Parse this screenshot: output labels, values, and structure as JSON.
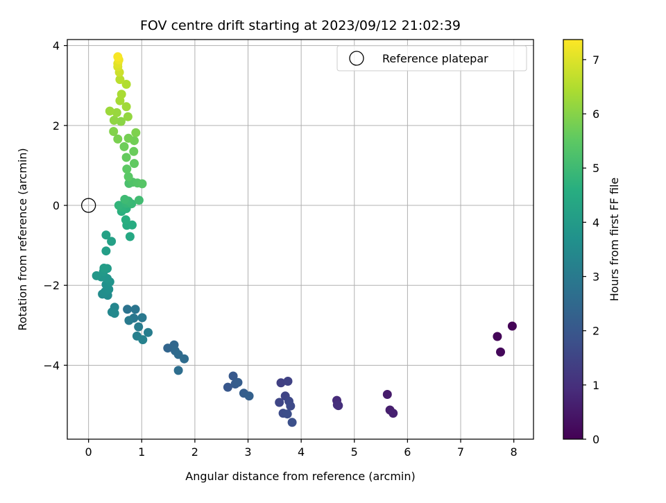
{
  "chart_data": {
    "type": "scatter",
    "title": "FOV centre drift starting at 2023/09/12 21:02:39",
    "xlabel": "Angular distance from reference (arcmin)",
    "ylabel": "Rotation from reference (arcmin)",
    "xlim": [
      -0.4,
      8.37
    ],
    "ylim": [
      -5.85,
      4.15
    ],
    "xticks": [
      "0",
      "1",
      "2",
      "3",
      "4",
      "5",
      "6",
      "7",
      "8"
    ],
    "yticks": [
      "−4",
      "−2",
      "0",
      "2",
      "4"
    ],
    "grid": true,
    "legend": {
      "position": "top-right",
      "entries": [
        "Reference platepar"
      ]
    },
    "reference_point": {
      "x": 0,
      "y": 0,
      "name": "Reference platepar"
    },
    "colorbar": {
      "label": "Hours from first FF file",
      "min": 0,
      "max": 7.37,
      "ticks": [
        "0",
        "1",
        "2",
        "3",
        "4",
        "5",
        "6",
        "7"
      ],
      "colormap": "viridis"
    },
    "points": [
      [
        7.97,
        -3.02,
        0.05
      ],
      [
        7.69,
        -3.28,
        0.1
      ],
      [
        7.75,
        -3.67,
        0.15
      ],
      [
        5.62,
        -4.73,
        0.55
      ],
      [
        5.67,
        -5.12,
        0.6
      ],
      [
        5.73,
        -5.2,
        0.65
      ],
      [
        4.67,
        -4.88,
        0.9
      ],
      [
        4.68,
        -4.99,
        0.95
      ],
      [
        4.7,
        -5.01,
        1.0
      ],
      [
        3.62,
        -4.44,
        1.4
      ],
      [
        3.75,
        -4.4,
        1.45
      ],
      [
        3.7,
        -4.77,
        1.5
      ],
      [
        3.59,
        -4.93,
        1.55
      ],
      [
        3.77,
        -4.9,
        1.6
      ],
      [
        3.8,
        -5.02,
        1.65
      ],
      [
        3.66,
        -5.2,
        1.7
      ],
      [
        3.74,
        -5.22,
        1.75
      ],
      [
        3.83,
        -5.43,
        1.8
      ],
      [
        2.62,
        -4.55,
        2.0
      ],
      [
        2.72,
        -4.27,
        2.05
      ],
      [
        2.76,
        -4.47,
        2.1
      ],
      [
        2.81,
        -4.43,
        2.15
      ],
      [
        2.92,
        -4.7,
        2.2
      ],
      [
        3.02,
        -4.77,
        2.25
      ],
      [
        1.49,
        -3.57,
        2.4
      ],
      [
        1.61,
        -3.49,
        2.45
      ],
      [
        1.63,
        -3.64,
        2.5
      ],
      [
        1.69,
        -3.73,
        2.55
      ],
      [
        1.8,
        -3.84,
        2.6
      ],
      [
        1.69,
        -4.13,
        2.65
      ],
      [
        0.73,
        -2.6,
        2.8
      ],
      [
        0.88,
        -2.6,
        2.85
      ],
      [
        0.85,
        -2.82,
        2.9
      ],
      [
        1.01,
        -2.81,
        2.95
      ],
      [
        0.76,
        -2.88,
        3.0
      ],
      [
        0.94,
        -3.04,
        3.05
      ],
      [
        1.12,
        -3.18,
        3.1
      ],
      [
        0.91,
        -3.27,
        3.15
      ],
      [
        1.02,
        -3.36,
        3.2
      ],
      [
        0.49,
        -2.55,
        3.35
      ],
      [
        0.44,
        -2.67,
        3.4
      ],
      [
        0.49,
        -2.7,
        3.45
      ],
      [
        0.36,
        -2.25,
        3.5
      ],
      [
        0.26,
        -2.22,
        3.55
      ],
      [
        0.31,
        -2.16,
        3.6
      ],
      [
        0.38,
        -2.1,
        3.65
      ],
      [
        0.33,
        -1.98,
        3.7
      ],
      [
        0.4,
        -1.91,
        3.75
      ],
      [
        0.35,
        -1.83,
        3.8
      ],
      [
        0.24,
        -1.79,
        3.85
      ],
      [
        0.15,
        -1.76,
        3.9
      ],
      [
        0.28,
        -1.66,
        3.95
      ],
      [
        0.35,
        -1.58,
        4.0
      ],
      [
        0.29,
        -1.57,
        4.05
      ],
      [
        0.33,
        -1.14,
        4.1
      ],
      [
        0.43,
        -0.9,
        4.15
      ],
      [
        0.33,
        -0.74,
        4.2
      ],
      [
        0.78,
        -0.78,
        4.4
      ],
      [
        0.72,
        -0.5,
        4.5
      ],
      [
        0.82,
        -0.49,
        4.55
      ],
      [
        0.7,
        -0.36,
        4.6
      ],
      [
        0.62,
        -0.15,
        4.65
      ],
      [
        0.71,
        -0.08,
        4.7
      ],
      [
        0.61,
        -0.05,
        4.75
      ],
      [
        0.57,
        0.0,
        4.8
      ],
      [
        0.71,
        0.05,
        4.85
      ],
      [
        0.81,
        0.04,
        4.9
      ],
      [
        0.75,
        0.11,
        4.95
      ],
      [
        0.68,
        0.15,
        5.0
      ],
      [
        0.95,
        0.13,
        5.05
      ],
      [
        0.76,
        0.55,
        5.2
      ],
      [
        0.83,
        0.58,
        5.3
      ],
      [
        0.92,
        0.56,
        5.35
      ],
      [
        1.01,
        0.54,
        5.4
      ],
      [
        0.75,
        0.72,
        5.45
      ],
      [
        0.72,
        0.91,
        5.5
      ],
      [
        0.86,
        1.05,
        5.55
      ],
      [
        0.71,
        1.2,
        5.6
      ],
      [
        0.85,
        1.35,
        5.65
      ],
      [
        0.67,
        1.47,
        5.7
      ],
      [
        0.86,
        1.62,
        5.75
      ],
      [
        0.75,
        1.68,
        5.8
      ],
      [
        0.55,
        1.66,
        5.85
      ],
      [
        0.89,
        1.82,
        5.9
      ],
      [
        0.47,
        1.85,
        5.95
      ],
      [
        0.61,
        2.1,
        6.05
      ],
      [
        0.48,
        2.13,
        6.1
      ],
      [
        0.74,
        2.22,
        6.15
      ],
      [
        0.53,
        2.32,
        6.2
      ],
      [
        0.4,
        2.36,
        6.25
      ],
      [
        0.71,
        2.47,
        6.3
      ],
      [
        0.59,
        2.62,
        6.35
      ],
      [
        0.62,
        2.78,
        6.4
      ],
      [
        0.71,
        3.03,
        6.5
      ],
      [
        0.59,
        3.15,
        6.6
      ],
      [
        0.58,
        3.33,
        6.8
      ],
      [
        0.55,
        3.47,
        6.95
      ],
      [
        0.55,
        3.55,
        7.05
      ],
      [
        0.57,
        3.64,
        7.2
      ],
      [
        0.55,
        3.72,
        7.3
      ]
    ]
  }
}
